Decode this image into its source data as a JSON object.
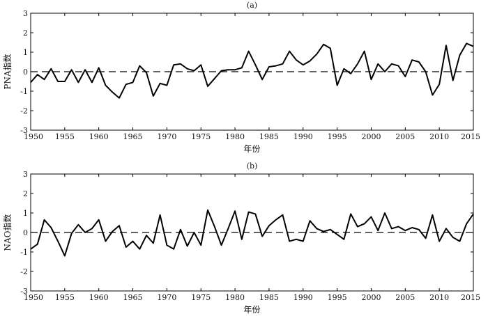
{
  "chart_data": [
    {
      "type": "line",
      "title": "(a)",
      "xlabel": "年份",
      "ylabel": "PNA指数",
      "xlim": [
        1950,
        2015
      ],
      "ylim": [
        -3,
        3
      ],
      "xticks": [
        1950,
        1955,
        1960,
        1965,
        1970,
        1975,
        1980,
        1985,
        1990,
        1995,
        2000,
        2005,
        2010,
        2015
      ],
      "yticks": [
        -3,
        -2,
        -1,
        0,
        1,
        2,
        3
      ],
      "reference_line": {
        "y": 0,
        "style": "dashed"
      },
      "grid": false,
      "x": [
        1950,
        1951,
        1952,
        1953,
        1954,
        1955,
        1956,
        1957,
        1958,
        1959,
        1960,
        1961,
        1962,
        1963,
        1964,
        1965,
        1966,
        1967,
        1968,
        1969,
        1970,
        1971,
        1972,
        1973,
        1974,
        1975,
        1976,
        1977,
        1978,
        1979,
        1980,
        1981,
        1982,
        1983,
        1984,
        1985,
        1986,
        1987,
        1988,
        1989,
        1990,
        1991,
        1992,
        1993,
        1994,
        1995,
        1996,
        1997,
        1998,
        1999,
        2000,
        2001,
        2002,
        2003,
        2004,
        2005,
        2006,
        2007,
        2008,
        2009,
        2010,
        2011,
        2012,
        2013,
        2014,
        2015
      ],
      "series": [
        {
          "values": [
            -0.55,
            -0.15,
            -0.4,
            0.15,
            -0.5,
            -0.5,
            0.1,
            -0.55,
            0.1,
            -0.55,
            0.2,
            -0.7,
            -1.05,
            -1.35,
            -0.65,
            -0.55,
            0.3,
            -0.05,
            -1.25,
            -0.6,
            -0.7,
            0.35,
            0.4,
            0.15,
            0.05,
            0.35,
            -0.75,
            -0.35,
            0.05,
            0.1,
            0.1,
            0.2,
            1.05,
            0.35,
            -0.4,
            0.25,
            0.3,
            0.4,
            1.05,
            0.6,
            0.35,
            0.55,
            0.9,
            1.4,
            1.2,
            -0.7,
            0.15,
            -0.1,
            0.4,
            1.05,
            -0.4,
            0.4,
            0.0,
            0.4,
            0.3,
            -0.25,
            0.6,
            0.5,
            0.0,
            -1.2,
            -0.65,
            1.35,
            -0.45,
            0.85,
            1.45,
            1.3
          ]
        }
      ]
    },
    {
      "type": "line",
      "title": "(b)",
      "xlabel": "年份",
      "ylabel": "NAO指数",
      "xlim": [
        1950,
        2015
      ],
      "ylim": [
        -3,
        3
      ],
      "xticks": [
        1950,
        1955,
        1960,
        1965,
        1970,
        1975,
        1980,
        1985,
        1990,
        1995,
        2000,
        2005,
        2010,
        2015
      ],
      "yticks": [
        -3,
        -2,
        -1,
        0,
        1,
        2,
        3
      ],
      "reference_line": {
        "y": 0,
        "style": "dashed"
      },
      "grid": false,
      "x": [
        1950,
        1951,
        1952,
        1953,
        1954,
        1955,
        1956,
        1957,
        1958,
        1959,
        1960,
        1961,
        1962,
        1963,
        1964,
        1965,
        1966,
        1967,
        1968,
        1969,
        1970,
        1971,
        1972,
        1973,
        1974,
        1975,
        1976,
        1977,
        1978,
        1979,
        1980,
        1981,
        1982,
        1983,
        1984,
        1985,
        1986,
        1987,
        1988,
        1989,
        1990,
        1991,
        1992,
        1993,
        1994,
        1995,
        1996,
        1997,
        1998,
        1999,
        2000,
        2001,
        2002,
        2003,
        2004,
        2005,
        2006,
        2007,
        2008,
        2009,
        2010,
        2011,
        2012,
        2013,
        2014,
        2015
      ],
      "series": [
        {
          "values": [
            -0.85,
            -0.6,
            0.65,
            0.25,
            -0.45,
            -1.2,
            -0.05,
            0.4,
            0.0,
            0.2,
            0.65,
            -0.45,
            0.05,
            0.35,
            -0.75,
            -0.45,
            -0.85,
            -0.15,
            -0.55,
            0.9,
            -0.65,
            -0.85,
            0.15,
            -0.7,
            0.0,
            -0.65,
            1.15,
            0.3,
            -0.65,
            0.2,
            1.1,
            -0.35,
            1.05,
            0.95,
            -0.2,
            0.35,
            0.65,
            0.9,
            -0.45,
            -0.35,
            -0.45,
            0.6,
            0.2,
            0.05,
            0.15,
            -0.1,
            -0.35,
            0.95,
            0.3,
            0.45,
            0.8,
            0.1,
            1.0,
            0.2,
            0.3,
            0.1,
            0.25,
            0.15,
            -0.3,
            0.9,
            -0.45,
            0.2,
            -0.25,
            -0.45,
            0.45,
            0.95
          ]
        }
      ]
    }
  ]
}
